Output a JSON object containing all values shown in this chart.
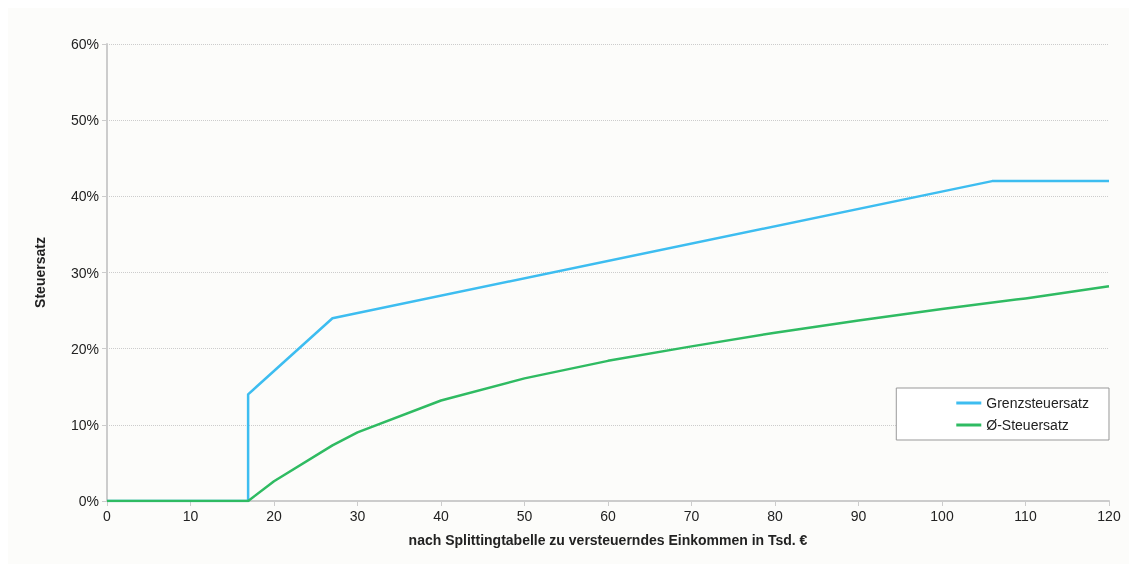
{
  "chart_data": {
    "type": "line",
    "xlabel": "nach Splittingtabelle zu versteuerndes Einkommen in Tsd. €",
    "ylabel": "Steuersatz",
    "xlim": [
      0,
      120
    ],
    "xticks": [
      0,
      10,
      20,
      30,
      40,
      50,
      60,
      70,
      80,
      90,
      100,
      110,
      120
    ],
    "ylim": [
      0,
      60
    ],
    "yticks": [
      {
        "value": 0,
        "label": "0%"
      },
      {
        "value": 10,
        "label": "10%"
      },
      {
        "value": 20,
        "label": "20%"
      },
      {
        "value": 30,
        "label": "30%"
      },
      {
        "value": 40,
        "label": "40%"
      },
      {
        "value": 50,
        "label": "50%"
      },
      {
        "value": 60,
        "label": "60%"
      }
    ],
    "grid": "y",
    "legend": "right",
    "marker": "none",
    "line_style": "solid",
    "series": [
      {
        "name": "Grenzsteuersatz",
        "color": "#3dbdf0",
        "x": [
          0,
          16.9,
          16.9,
          27,
          106,
          120
        ],
        "values": [
          0,
          0,
          14,
          24,
          42,
          42
        ]
      },
      {
        "name": "Ø-Steuersatz",
        "color": "#2fbb62",
        "x": [
          0,
          16.9,
          20,
          27,
          30,
          40,
          50,
          60,
          70,
          80,
          90,
          100,
          110,
          120
        ],
        "values": [
          0,
          0,
          2.6,
          7.3,
          9,
          13.2,
          16.1,
          18.4,
          20.3,
          22.1,
          23.7,
          25.2,
          26.6,
          28.2
        ]
      }
    ]
  }
}
